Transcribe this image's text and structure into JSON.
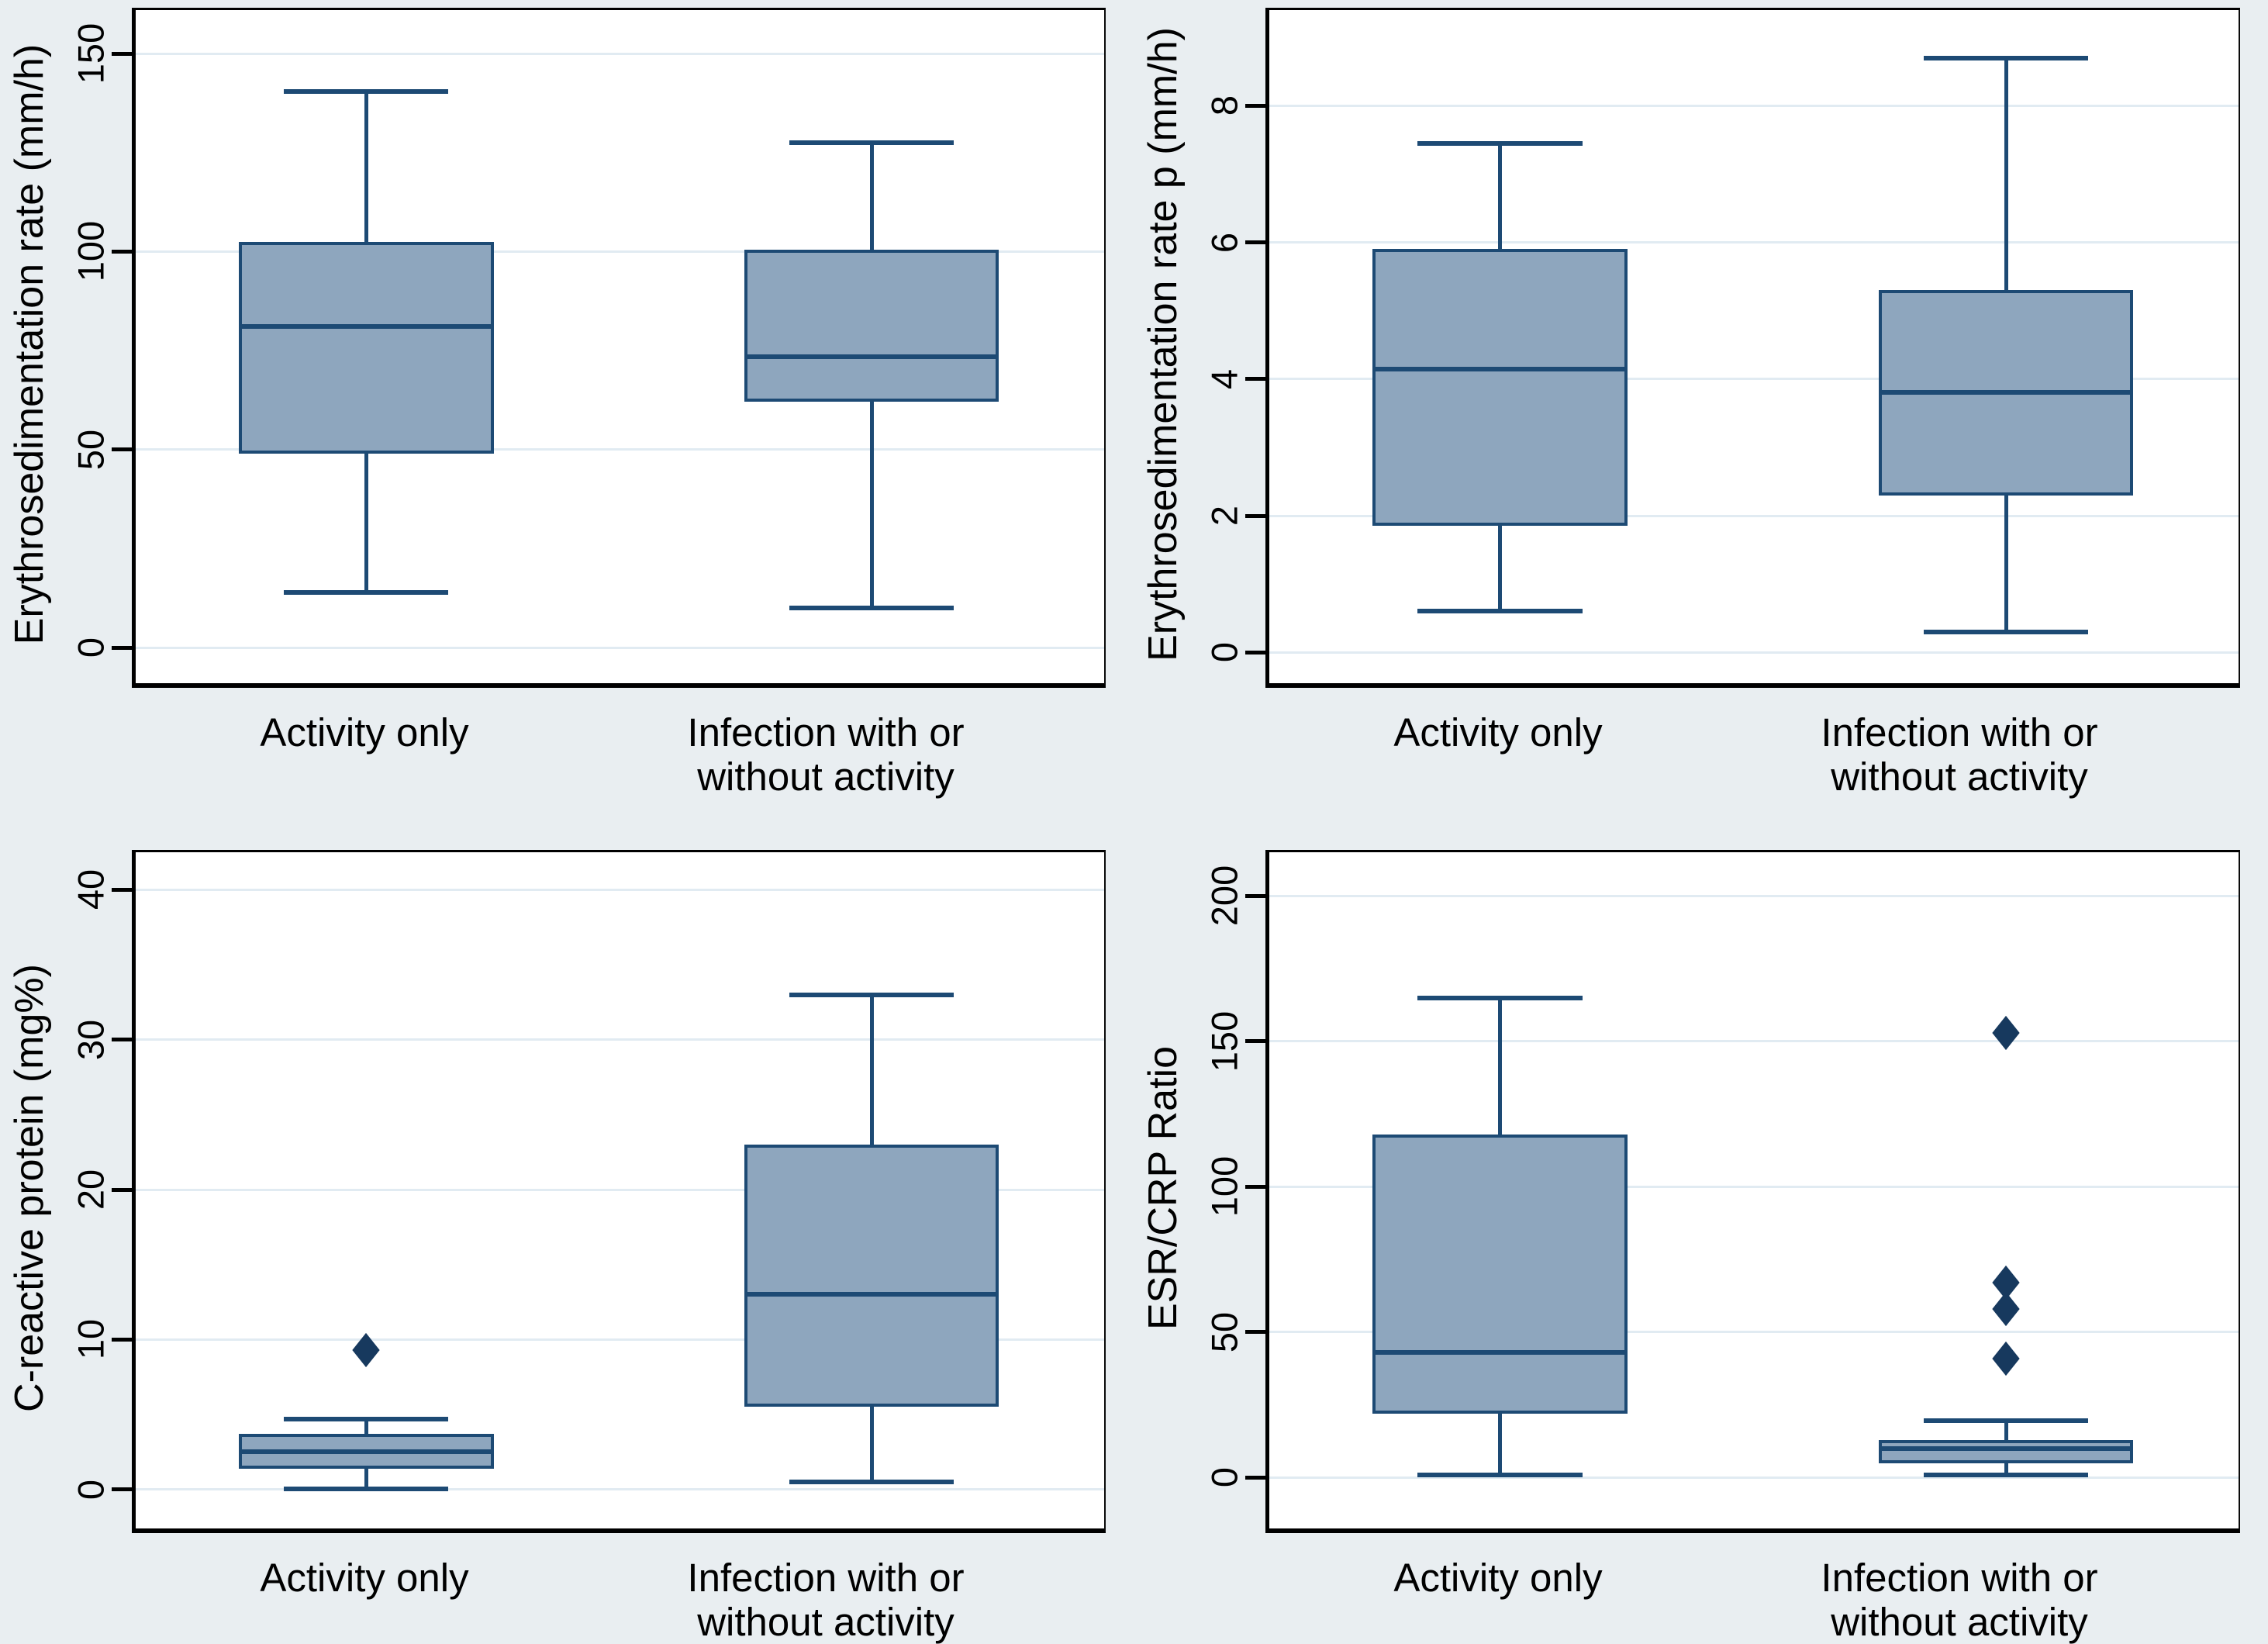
{
  "style": {
    "page_bg": "#e9eef1",
    "plot_bg": "#ffffff",
    "grid_color": "#e1ebf2",
    "box_fill": "#8ea6be",
    "box_border": "#1d4a74",
    "median_color": "#1d4a74",
    "whisker_color": "#1d4a74",
    "outlier_color": "#17395e",
    "axis_color": "#000000",
    "text_color": "#000000"
  },
  "chart_data": [
    {
      "type": "box",
      "title": "",
      "ylabel": "Erythrosedimentation rate (mm/h)",
      "xlabel": "",
      "yticks": [
        0,
        50,
        100,
        150
      ],
      "ylim": [
        -9,
        161
      ],
      "grid": true,
      "legend": "none",
      "categories": [
        "Activity only",
        "Infection with or without activity"
      ],
      "series": [
        {
          "name": "Activity only",
          "whislo": 14,
          "q1": 49,
          "med": 81,
          "q3": 102.5,
          "whishi": 140.5,
          "outliers": []
        },
        {
          "name": "Infection with or without activity",
          "whislo": 10,
          "q1": 62,
          "med": 73.5,
          "q3": 100.5,
          "whishi": 127.5,
          "outliers": []
        }
      ]
    },
    {
      "type": "box",
      "title": "",
      "ylabel": "Erythrosedimentation rate p (mm/h)",
      "xlabel": "",
      "yticks": [
        0,
        2,
        4,
        6,
        8
      ],
      "ylim": [
        -0.45,
        9.4
      ],
      "grid": true,
      "legend": "none",
      "categories": [
        "Activity only",
        "Infection with or without activity"
      ],
      "series": [
        {
          "name": "Activity only",
          "whislo": 0.6,
          "q1": 1.85,
          "med": 4.15,
          "q3": 5.9,
          "whishi": 7.45,
          "outliers": []
        },
        {
          "name": "Infection with or without activity",
          "whislo": 0.3,
          "q1": 2.3,
          "med": 3.8,
          "q3": 5.3,
          "whishi": 8.7,
          "outliers": []
        }
      ]
    },
    {
      "type": "box",
      "title": "",
      "ylabel": "C-reactive protein (mg%)",
      "xlabel": "",
      "yticks": [
        0,
        10,
        20,
        30,
        40
      ],
      "ylim": [
        -2.6,
        42.5
      ],
      "grid": true,
      "legend": "none",
      "categories": [
        "Activity only",
        "Infection with or without activity"
      ],
      "series": [
        {
          "name": "Activity only",
          "whislo": 0.05,
          "q1": 1.4,
          "med": 2.5,
          "q3": 3.7,
          "whishi": 4.7,
          "outliers": [
            9.3
          ]
        },
        {
          "name": "Infection with or without activity",
          "whislo": 0.5,
          "q1": 5.5,
          "med": 13,
          "q3": 23,
          "whishi": 33,
          "outliers": []
        }
      ]
    },
    {
      "type": "box",
      "title": "",
      "ylabel": "ESR/CRP Ratio",
      "xlabel": "",
      "yticks": [
        0,
        50,
        100,
        150,
        200
      ],
      "ylim": [
        -17.5,
        215
      ],
      "grid": true,
      "legend": "none",
      "categories": [
        "Activity only",
        "Infection with or without activity"
      ],
      "series": [
        {
          "name": "Activity only",
          "whislo": 1,
          "q1": 22,
          "med": 43,
          "q3": 118,
          "whishi": 165,
          "outliers": []
        },
        {
          "name": "Infection with or without activity",
          "whislo": 1,
          "q1": 5,
          "med": 10,
          "q3": 13,
          "whishi": 19.5,
          "outliers": [
            41,
            58,
            67,
            153
          ]
        }
      ]
    }
  ]
}
